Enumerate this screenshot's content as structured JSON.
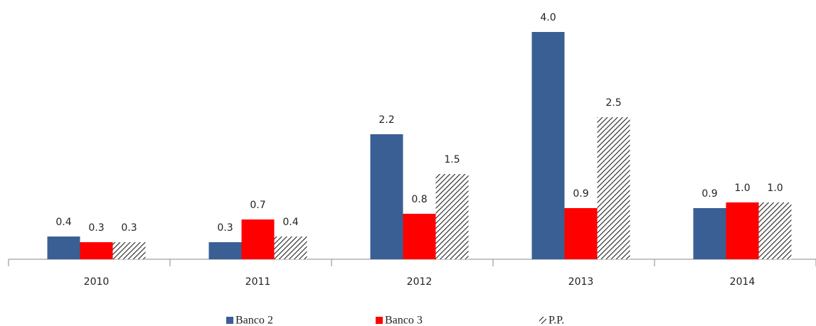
{
  "chart_data": {
    "type": "bar",
    "categories": [
      "2010",
      "2011",
      "2012",
      "2013",
      "2014"
    ],
    "series": [
      {
        "name": "Banco 2",
        "color": "#3a5f94",
        "values": [
          0.4,
          0.3,
          2.2,
          4.0,
          0.9
        ],
        "value_labels": [
          "0.4",
          "0.3",
          "2.2",
          "4.0",
          "0.9"
        ]
      },
      {
        "name": "Banco 3",
        "color": "#ff0000",
        "values": [
          0.3,
          0.7,
          0.8,
          0.9,
          1.0
        ],
        "value_labels": [
          "0.3",
          "0.7",
          "0.8",
          "0.9",
          "1.0"
        ]
      },
      {
        "name": "P.P.",
        "color": "#222222",
        "hatch": true,
        "values": [
          0.3,
          0.4,
          1.5,
          2.5,
          1.0
        ],
        "value_labels": [
          "0.3",
          "0.4",
          "1.5",
          "2.5",
          "1.0"
        ]
      }
    ],
    "ylim": [
      0,
      4.5
    ],
    "legend": "bottom"
  }
}
